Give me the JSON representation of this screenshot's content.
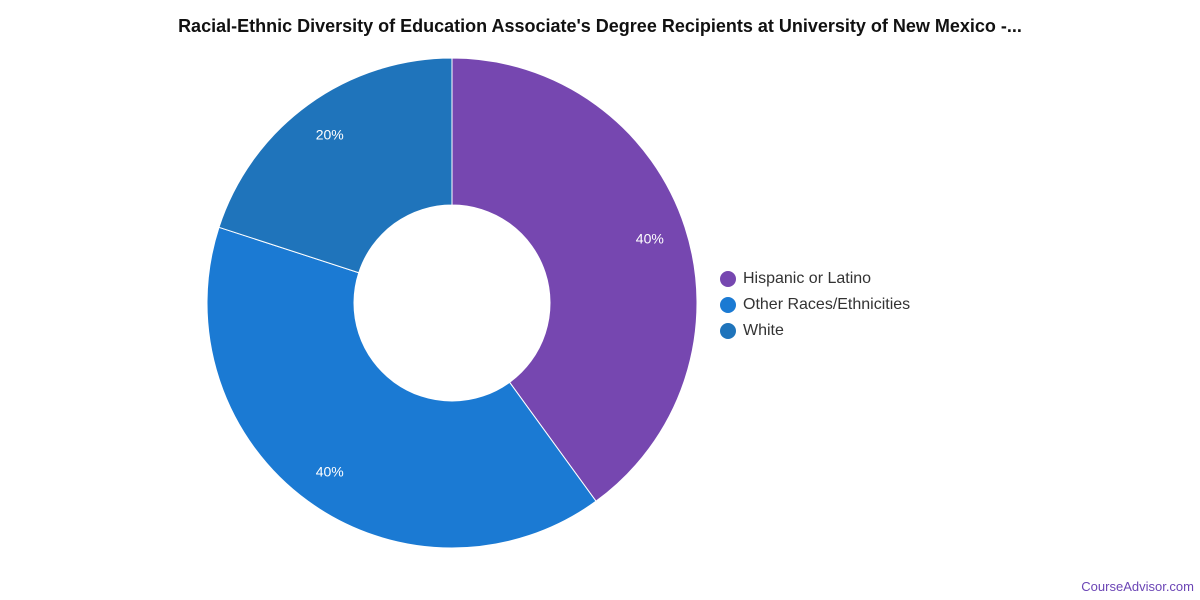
{
  "chart_data": {
    "type": "pie",
    "variant": "donut",
    "title": "Racial-Ethnic Diversity of Education Associate's Degree Recipients at University of New Mexico -...",
    "slices": [
      {
        "label": "Hispanic or Latino",
        "value": 40,
        "display": "40%",
        "color": "#7647b0"
      },
      {
        "label": "Other Races/Ethnicities",
        "value": 40,
        "display": "40%",
        "color": "#1b7ad3"
      },
      {
        "label": "White",
        "value": 20,
        "display": "20%",
        "color": "#1f74bb"
      }
    ],
    "legend_position": "right"
  },
  "branding": {
    "text": "CourseAdvisor.com",
    "color": "#6b45b5"
  }
}
